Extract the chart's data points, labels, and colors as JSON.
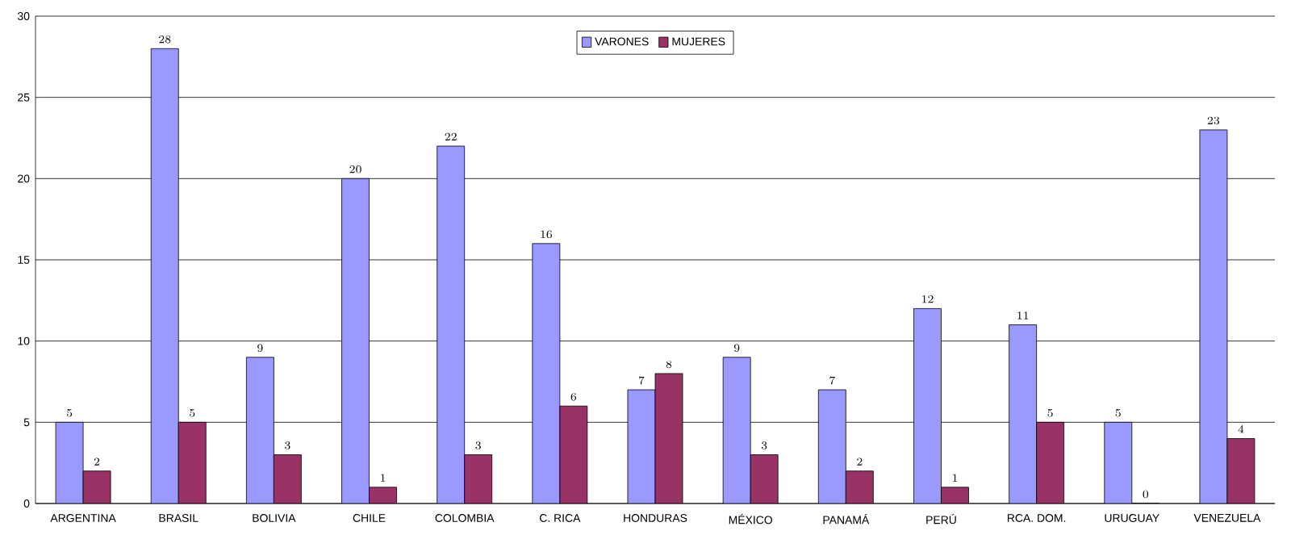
{
  "chart_data": {
    "type": "bar",
    "categories": [
      "ARGENTINA",
      "BRASIL",
      "BOLIVIA",
      "CHILE",
      "COLOMBIA",
      "C. RICA",
      "HONDURAS",
      "MÉXICO",
      "PANAMÁ",
      "PERÚ",
      "RCA. DOM.",
      "URUGUAY",
      "VENEZUELA"
    ],
    "series": [
      {
        "name": "VARONES",
        "color": "#9999ff",
        "values": [
          5,
          28,
          9,
          20,
          22,
          16,
          7,
          9,
          7,
          12,
          11,
          5,
          23
        ]
      },
      {
        "name": "MUJERES",
        "color": "#993366",
        "values": [
          2,
          5,
          3,
          1,
          3,
          6,
          8,
          3,
          2,
          1,
          5,
          0,
          4
        ]
      }
    ],
    "ylim": [
      0,
      30
    ],
    "yticks": [
      0,
      5,
      10,
      15,
      20,
      25,
      30
    ],
    "grid": "y",
    "legend": "top",
    "data_labels": true
  }
}
